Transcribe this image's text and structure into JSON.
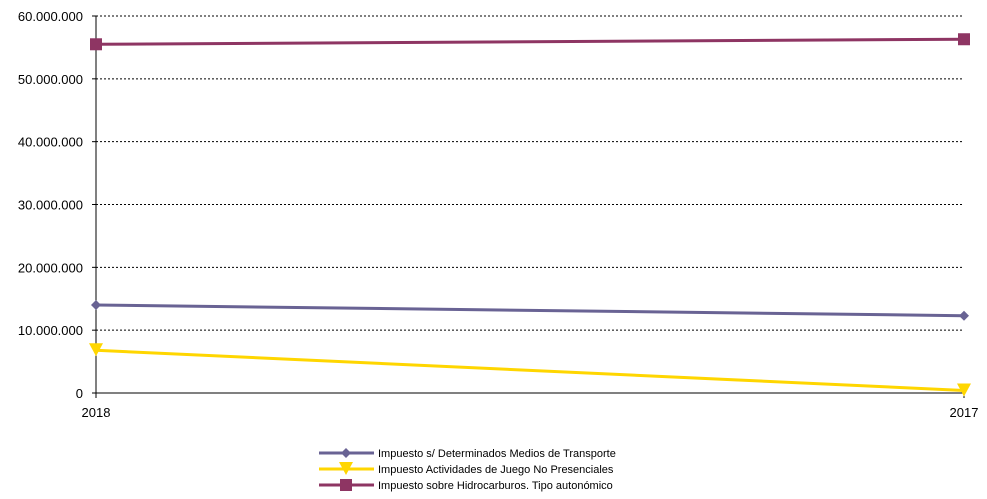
{
  "chart_data": {
    "type": "line",
    "x": [
      "2018",
      "2017"
    ],
    "ylim": [
      0,
      60000000
    ],
    "yticks": [
      0,
      10000000,
      20000000,
      30000000,
      40000000,
      50000000,
      60000000
    ],
    "ytick_labels": [
      "0",
      "10.000.000",
      "20.000.000",
      "30.000.000",
      "40.000.000",
      "50.000.000",
      "60.000.000"
    ],
    "grid": true,
    "legend_position": "bottom",
    "series": [
      {
        "name": "Impuesto s/ Determinados Medios de Transporte",
        "values": [
          14000000,
          12300000
        ],
        "color": "#696394",
        "marker": "diamond"
      },
      {
        "name": "Impuesto Actividades de Juego No Presenciales",
        "values": [
          6800000,
          400000
        ],
        "color": "#FFD600",
        "marker": "triangle-down"
      },
      {
        "name": "Impuesto sobre Hidrocarburos. Tipo autonómico",
        "values": [
          55500000,
          56300000
        ],
        "color": "#8E3563",
        "marker": "square"
      }
    ]
  }
}
